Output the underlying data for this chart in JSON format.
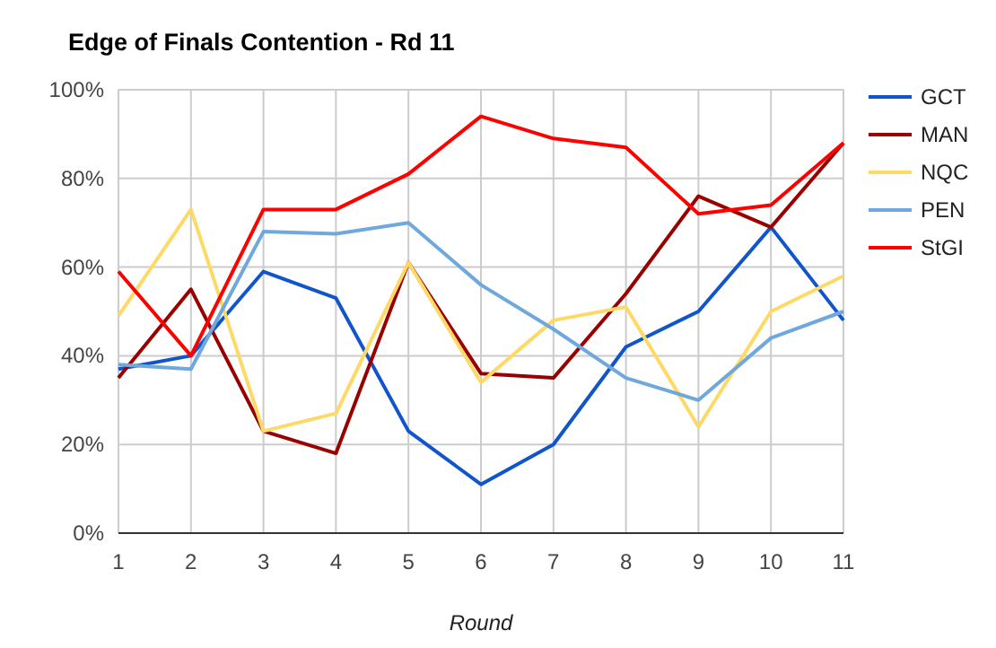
{
  "chart_data": {
    "type": "line",
    "title": "Edge of Finals Contention - Rd 11",
    "xlabel": "Round",
    "x": [
      1,
      2,
      3,
      4,
      5,
      6,
      7,
      8,
      9,
      10,
      11
    ],
    "xlim": [
      1,
      11
    ],
    "xticks": [
      1,
      2,
      3,
      4,
      5,
      6,
      7,
      8,
      9,
      10,
      11
    ],
    "ylim": [
      0,
      100
    ],
    "yticks": [
      {
        "value": 0,
        "label": "0%"
      },
      {
        "value": 20,
        "label": "20%"
      },
      {
        "value": 40,
        "label": "40%"
      },
      {
        "value": 60,
        "label": "60%"
      },
      {
        "value": 80,
        "label": "80%"
      },
      {
        "value": 100,
        "label": "100%"
      }
    ],
    "grid": true,
    "legend": "right",
    "marker": "none",
    "line_style": "solid",
    "series": [
      {
        "name": "GCT",
        "color": "#1155cc",
        "values": [
          37,
          40,
          59,
          53,
          23,
          11,
          20,
          42,
          50,
          69,
          48
        ]
      },
      {
        "name": "MAN",
        "color": "#990000",
        "values": [
          35,
          55,
          23,
          18,
          61,
          36,
          35,
          54,
          76,
          69,
          88
        ]
      },
      {
        "name": "NQC",
        "color": "#ffd966",
        "values": [
          49,
          73,
          23,
          27,
          61,
          34,
          48,
          51,
          24,
          50,
          58
        ]
      },
      {
        "name": "PEN",
        "color": "#6fa8dc",
        "values": [
          38,
          37,
          68,
          67.5,
          70,
          56,
          46,
          35,
          30,
          44,
          50
        ]
      },
      {
        "name": "StGI",
        "color": "#ff0000",
        "values": [
          59,
          40,
          73,
          73,
          81,
          94,
          89,
          87,
          72,
          74,
          88
        ]
      }
    ]
  }
}
